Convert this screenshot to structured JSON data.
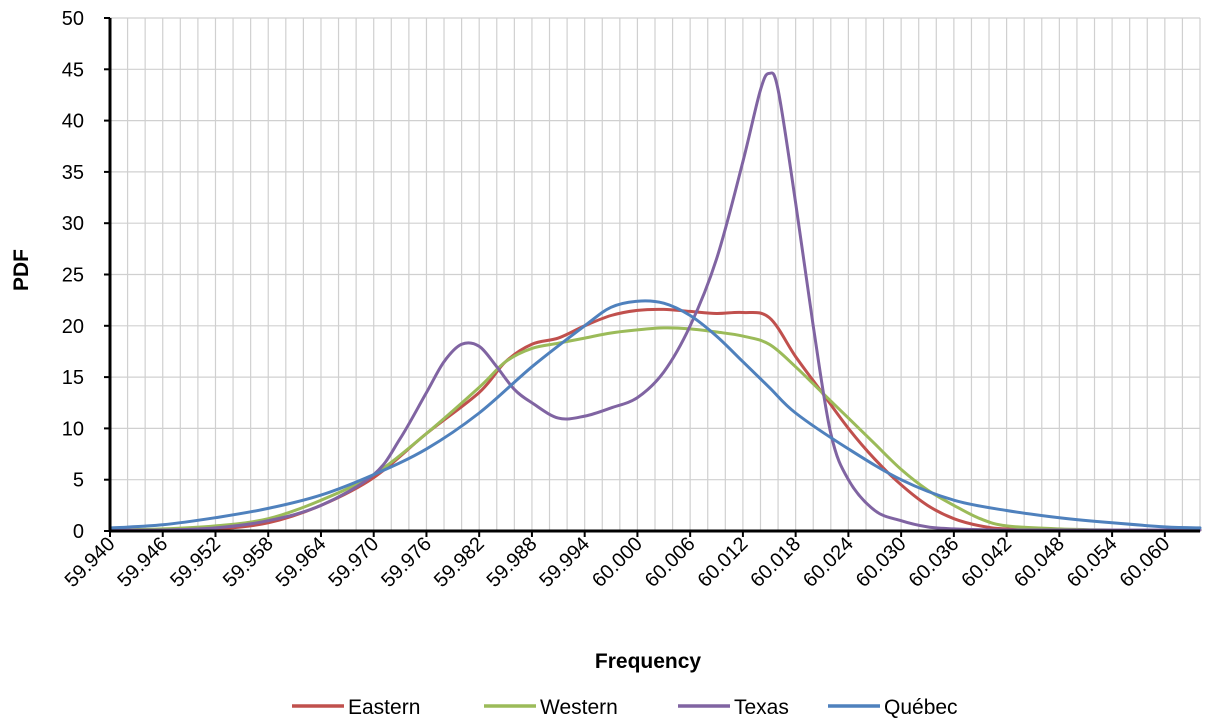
{
  "chart_data": {
    "type": "line",
    "title": "",
    "xlabel": "Frequency",
    "ylabel": "PDF",
    "xlim": [
      59.94,
      60.064
    ],
    "ylim": [
      0,
      50
    ],
    "yticks": [
      0,
      5,
      10,
      15,
      20,
      25,
      30,
      35,
      40,
      45,
      50
    ],
    "xtick_labels": [
      "59.940",
      "59.946",
      "59.952",
      "59.958",
      "59.964",
      "59.970",
      "59.976",
      "59.982",
      "59.988",
      "59.994",
      "60.000",
      "60.006",
      "60.012",
      "60.018",
      "60.024",
      "60.030",
      "60.036",
      "60.042",
      "60.048",
      "60.054",
      "60.060"
    ],
    "grid": true,
    "legend_position": "bottom",
    "series": [
      {
        "name": "Eastern",
        "color": "#c0504d",
        "points": [
          [
            59.94,
            0.1
          ],
          [
            59.946,
            0.1
          ],
          [
            59.952,
            0.2
          ],
          [
            59.958,
            0.8
          ],
          [
            59.964,
            2.5
          ],
          [
            59.97,
            5.2
          ],
          [
            59.976,
            9.5
          ],
          [
            59.982,
            13.5
          ],
          [
            59.985,
            16.5
          ],
          [
            59.988,
            18.2
          ],
          [
            59.991,
            18.8
          ],
          [
            59.994,
            20.0
          ],
          [
            59.997,
            21.0
          ],
          [
            60.0,
            21.5
          ],
          [
            60.003,
            21.6
          ],
          [
            60.006,
            21.4
          ],
          [
            60.009,
            21.2
          ],
          [
            60.012,
            21.3
          ],
          [
            60.015,
            20.8
          ],
          [
            60.018,
            17.0
          ],
          [
            60.021,
            13.5
          ],
          [
            60.024,
            10.0
          ],
          [
            60.027,
            7.0
          ],
          [
            60.03,
            4.5
          ],
          [
            60.033,
            2.5
          ],
          [
            60.036,
            1.2
          ],
          [
            60.039,
            0.5
          ],
          [
            60.042,
            0.2
          ],
          [
            60.048,
            0.1
          ],
          [
            60.054,
            0.1
          ],
          [
            60.064,
            0.1
          ]
        ]
      },
      {
        "name": "Western",
        "color": "#9bbb59",
        "points": [
          [
            59.94,
            0.1
          ],
          [
            59.946,
            0.2
          ],
          [
            59.952,
            0.5
          ],
          [
            59.958,
            1.2
          ],
          [
            59.964,
            3.0
          ],
          [
            59.97,
            5.5
          ],
          [
            59.976,
            9.5
          ],
          [
            59.982,
            14.0
          ],
          [
            59.985,
            16.5
          ],
          [
            59.988,
            17.8
          ],
          [
            59.991,
            18.3
          ],
          [
            59.994,
            18.8
          ],
          [
            59.997,
            19.3
          ],
          [
            60.0,
            19.6
          ],
          [
            60.003,
            19.8
          ],
          [
            60.006,
            19.7
          ],
          [
            60.009,
            19.4
          ],
          [
            60.012,
            19.0
          ],
          [
            60.015,
            18.2
          ],
          [
            60.018,
            16.0
          ],
          [
            60.021,
            13.5
          ],
          [
            60.024,
            11.0
          ],
          [
            60.027,
            8.5
          ],
          [
            60.03,
            6.0
          ],
          [
            60.033,
            4.0
          ],
          [
            60.036,
            2.5
          ],
          [
            60.039,
            1.2
          ],
          [
            60.042,
            0.5
          ],
          [
            60.048,
            0.2
          ],
          [
            60.054,
            0.1
          ],
          [
            60.064,
            0.1
          ]
        ]
      },
      {
        "name": "Texas",
        "color": "#8064a2",
        "points": [
          [
            59.94,
            0.1
          ],
          [
            59.946,
            0.1
          ],
          [
            59.952,
            0.3
          ],
          [
            59.958,
            1.0
          ],
          [
            59.964,
            2.5
          ],
          [
            59.97,
            5.5
          ],
          [
            59.973,
            9.0
          ],
          [
            59.976,
            13.5
          ],
          [
            59.978,
            16.5
          ],
          [
            59.98,
            18.2
          ],
          [
            59.982,
            18.0
          ],
          [
            59.984,
            16.0
          ],
          [
            59.986,
            13.8
          ],
          [
            59.988,
            12.5
          ],
          [
            59.991,
            11.0
          ],
          [
            59.994,
            11.2
          ],
          [
            59.997,
            12.0
          ],
          [
            60.0,
            13.0
          ],
          [
            60.003,
            15.5
          ],
          [
            60.006,
            20.0
          ],
          [
            60.009,
            26.5
          ],
          [
            60.012,
            36.0
          ],
          [
            60.014,
            43.0
          ],
          [
            60.015,
            44.6
          ],
          [
            60.016,
            43.0
          ],
          [
            60.018,
            32.0
          ],
          [
            60.02,
            20.0
          ],
          [
            60.022,
            9.5
          ],
          [
            60.024,
            5.0
          ],
          [
            60.027,
            2.0
          ],
          [
            60.03,
            1.0
          ],
          [
            60.033,
            0.4
          ],
          [
            60.036,
            0.2
          ],
          [
            60.042,
            0.1
          ],
          [
            60.064,
            0.1
          ]
        ]
      },
      {
        "name": "Québec",
        "color": "#4f81bd",
        "points": [
          [
            59.94,
            0.3
          ],
          [
            59.946,
            0.6
          ],
          [
            59.952,
            1.3
          ],
          [
            59.958,
            2.2
          ],
          [
            59.964,
            3.5
          ],
          [
            59.97,
            5.5
          ],
          [
            59.976,
            8.0
          ],
          [
            59.982,
            11.5
          ],
          [
            59.988,
            16.0
          ],
          [
            59.994,
            20.0
          ],
          [
            59.997,
            21.8
          ],
          [
            60.0,
            22.4
          ],
          [
            60.003,
            22.2
          ],
          [
            60.006,
            21.0
          ],
          [
            60.009,
            19.0
          ],
          [
            60.012,
            16.5
          ],
          [
            60.015,
            14.0
          ],
          [
            60.018,
            11.5
          ],
          [
            60.024,
            8.0
          ],
          [
            60.03,
            5.0
          ],
          [
            60.036,
            3.0
          ],
          [
            60.042,
            2.0
          ],
          [
            60.048,
            1.3
          ],
          [
            60.054,
            0.8
          ],
          [
            60.06,
            0.4
          ],
          [
            60.064,
            0.3
          ]
        ]
      }
    ]
  }
}
